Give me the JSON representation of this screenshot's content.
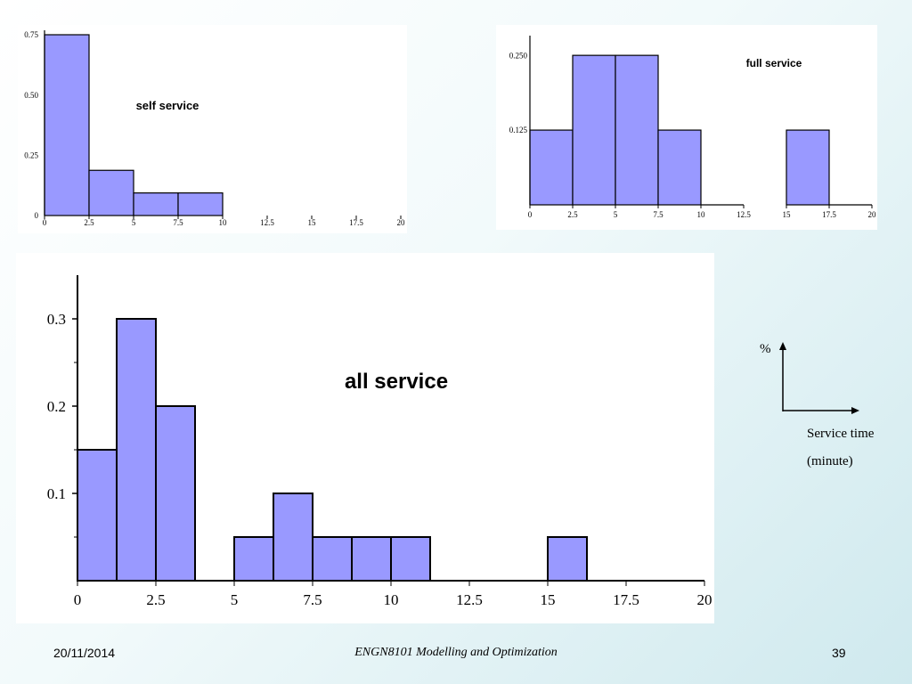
{
  "chart_data": [
    {
      "id": "self",
      "type": "bar",
      "title": "self service",
      "bins": [
        [
          0,
          2.5
        ],
        [
          2.5,
          5
        ],
        [
          5,
          7.5
        ],
        [
          7.5,
          10
        ]
      ],
      "values": [
        0.75,
        0.1875,
        0.09375,
        0.09375
      ],
      "xlim": [
        0,
        20
      ],
      "ylim": [
        0,
        0.75
      ],
      "xticks": [
        0,
        2.5,
        5,
        7.5,
        10,
        12.5,
        15,
        17.5,
        20
      ],
      "xtick_labels": [
        "0",
        "2.5",
        "5",
        "7.5",
        "10",
        "12.5",
        "15",
        "17.5",
        "20"
      ],
      "yticks": [
        0,
        0.25,
        0.5,
        0.75
      ],
      "ytick_labels": [
        "0",
        "0.25",
        "0.50",
        "0.75"
      ]
    },
    {
      "id": "full",
      "type": "bar",
      "title": "full service",
      "bins": [
        [
          0,
          2.5
        ],
        [
          2.5,
          5
        ],
        [
          5,
          7.5
        ],
        [
          7.5,
          10
        ],
        [
          10,
          12.5
        ],
        [
          15,
          17.5
        ],
        [
          17.5,
          20
        ]
      ],
      "values": [
        0.125,
        0.25,
        0.25,
        0.125,
        0,
        0.125,
        0
      ],
      "xlim": [
        0,
        20
      ],
      "ylim": [
        0,
        0.28
      ],
      "xticks": [
        0,
        2.5,
        5,
        7.5,
        10,
        12.5,
        15,
        17.5,
        20
      ],
      "xtick_labels": [
        "0",
        "2.5",
        "5",
        "7.5",
        "10",
        "12.5",
        "15",
        "17.5",
        "20"
      ],
      "yticks": [
        0.125,
        0.25
      ],
      "ytick_labels": [
        "0.125",
        "0.250"
      ]
    },
    {
      "id": "all",
      "type": "bar",
      "title": "all service",
      "bins": [
        [
          0,
          1.25
        ],
        [
          1.25,
          2.5
        ],
        [
          2.5,
          3.75
        ],
        [
          5,
          6.25
        ],
        [
          6.25,
          7.5
        ],
        [
          7.5,
          8.75
        ],
        [
          8.75,
          10
        ],
        [
          10,
          11.25
        ],
        [
          15,
          16.25
        ]
      ],
      "values": [
        0.15,
        0.3,
        0.2,
        0.05,
        0.1,
        0.05,
        0.05,
        0.05,
        0.05
      ],
      "xlim": [
        0,
        20
      ],
      "ylim": [
        0,
        0.35
      ],
      "xticks": [
        0,
        2.5,
        5,
        7.5,
        10,
        12.5,
        15,
        17.5,
        20
      ],
      "xtick_labels": [
        "0",
        "2.5",
        "5",
        "7.5",
        "10",
        "12.5",
        "15",
        "17.5",
        "20"
      ],
      "yticks": [
        0.1,
        0.2,
        0.3
      ],
      "ytick_labels": [
        "0.1",
        "0.2",
        "0.3"
      ]
    }
  ],
  "legend": {
    "y_label": "%",
    "x_label_line1": "Service time",
    "x_label_line2": "(minute)"
  },
  "footer": {
    "date": "20/11/2014",
    "course": "ENGN8101 Modelling and Optimization",
    "page": "39"
  }
}
